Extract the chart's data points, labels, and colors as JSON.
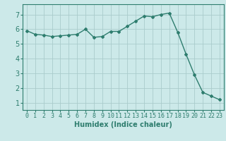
{
  "x": [
    0,
    1,
    2,
    3,
    4,
    5,
    6,
    7,
    8,
    9,
    10,
    11,
    12,
    13,
    14,
    15,
    16,
    17,
    18,
    19,
    20,
    21,
    22,
    23
  ],
  "y": [
    5.9,
    5.65,
    5.6,
    5.5,
    5.55,
    5.6,
    5.65,
    6.0,
    5.45,
    5.5,
    5.85,
    5.85,
    6.2,
    6.55,
    6.9,
    6.85,
    7.0,
    7.1,
    5.8,
    4.3,
    2.9,
    1.7,
    1.45,
    1.2
  ],
  "line_color": "#2e7d6e",
  "marker": "D",
  "marker_size": 2.0,
  "linewidth": 1.0,
  "bg_color": "#cce9e9",
  "grid_color": "#aacccc",
  "xlabel": "Humidex (Indice chaleur)",
  "xlabel_fontsize": 7,
  "tick_fontsize": 6,
  "ytick_fontsize": 7,
  "xlim": [
    -0.5,
    23.5
  ],
  "ylim": [
    0.5,
    7.7
  ],
  "yticks": [
    1,
    2,
    3,
    4,
    5,
    6,
    7
  ],
  "xticks": [
    0,
    1,
    2,
    3,
    4,
    5,
    6,
    7,
    8,
    9,
    10,
    11,
    12,
    13,
    14,
    15,
    16,
    17,
    18,
    19,
    20,
    21,
    22,
    23
  ]
}
